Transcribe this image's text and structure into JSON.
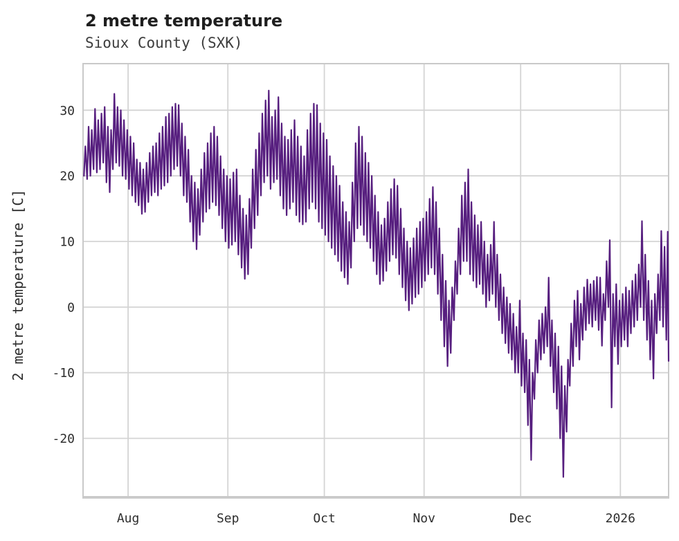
{
  "header": {
    "title": "2 metre temperature",
    "subtitle": "Sioux County (SXK)"
  },
  "chart_data": {
    "type": "line",
    "title": "2 metre temperature",
    "subtitle": "Sioux County (SXK)",
    "xlabel": "",
    "ylabel": "2 metre temperature [C]",
    "grid": true,
    "legend": "none",
    "line_color": "#571f7f",
    "grid_color": "#d4d4d4",
    "spine_color": "#c9c9c9",
    "x_tick_labels": [
      "Aug",
      "Sep",
      "Oct",
      "Nov",
      "Dec",
      "2026"
    ],
    "x_tick_day_offsets": [
      14,
      45,
      75,
      106,
      136,
      167
    ],
    "y_ticks": [
      30,
      20,
      10,
      0,
      -10,
      -20
    ],
    "ylim": [
      -28.9,
      37.1
    ],
    "xlim_days": [
      0,
      182
    ],
    "series_daily_envelope": {
      "note": "daily min/max envelope read from plot; day 0 = left edge (mid-July), consecutive days",
      "min": [
        20,
        19.5,
        20,
        21,
        20.5,
        21,
        22,
        19,
        17.5,
        21,
        22,
        21.5,
        20,
        19.5,
        18,
        17,
        16,
        15.5,
        14.2,
        14.5,
        16,
        17,
        17.5,
        17,
        18,
        18.5,
        19,
        20,
        21,
        21.5,
        20,
        17,
        16,
        13,
        10,
        8.8,
        11,
        13,
        14.5,
        15,
        16,
        15.5,
        14,
        12,
        10,
        9,
        9.5,
        10,
        8,
        6,
        4.3,
        5,
        9,
        12,
        14,
        17,
        19,
        20,
        18,
        19,
        19.5,
        17,
        15,
        14,
        15,
        16,
        14,
        13,
        12.6,
        13,
        15,
        16,
        15,
        13,
        12,
        11,
        10,
        9,
        8,
        7,
        5.5,
        4.5,
        3.5,
        6,
        10,
        12,
        12.5,
        11,
        10,
        9,
        7,
        5,
        3.5,
        4,
        5.5,
        7,
        8,
        7.5,
        5,
        3,
        1,
        -0.5,
        0.5,
        1.5,
        2,
        3,
        4,
        5,
        6,
        5,
        2,
        -2,
        -6,
        -9,
        -7,
        -2,
        2,
        5,
        7,
        7,
        5,
        4,
        3,
        3.5,
        2,
        0,
        1,
        2,
        0,
        -2,
        -4,
        -5.5,
        -7,
        -8,
        -10,
        -10,
        -12,
        -13,
        -18,
        -23.3,
        -14,
        -10,
        -8,
        -7,
        -6,
        -9,
        -13,
        -15.5,
        -20,
        -25.9,
        -19,
        -12,
        -9,
        -6,
        -8,
        -5,
        -3.5,
        -2.5,
        -3,
        -2,
        -3.5,
        -5.9,
        -2,
        0,
        -15.3,
        -6,
        -8.7,
        -6,
        -5,
        -6,
        -4,
        -3,
        -2,
        0,
        -2,
        -5,
        -8,
        -10.9,
        -4,
        -2,
        -3,
        -5
      ],
      "max": [
        24.5,
        27.5,
        27,
        30.2,
        28.5,
        29.5,
        30.5,
        27.5,
        27,
        32.5,
        30.5,
        30,
        28.5,
        27,
        26,
        25,
        22.5,
        22,
        21,
        22,
        23.5,
        24.5,
        25,
        26.5,
        27.5,
        29,
        29.5,
        30.5,
        31,
        30.8,
        28,
        26,
        24,
        20,
        19,
        18,
        21,
        23.5,
        25,
        26.5,
        27.5,
        26,
        23,
        21,
        20,
        19.5,
        20.5,
        21,
        17,
        15,
        14,
        16.5,
        21,
        24,
        26.5,
        29.5,
        31.5,
        33,
        29,
        30,
        32,
        28,
        26,
        25.5,
        27,
        28.5,
        26,
        24.5,
        23,
        27,
        29.5,
        31,
        30.8,
        28,
        26.5,
        25.5,
        23,
        21.5,
        20,
        18.5,
        16,
        14.5,
        13,
        19,
        25,
        27.5,
        26,
        23.5,
        22,
        20,
        17,
        14.5,
        12.5,
        13.5,
        16,
        18,
        19.5,
        18.5,
        15,
        12,
        10,
        9,
        10.5,
        12,
        13,
        13.5,
        14.5,
        16.5,
        18.3,
        16,
        12,
        8,
        4,
        1,
        3,
        7,
        12,
        17,
        19,
        21,
        16,
        14,
        12.5,
        13,
        10,
        8,
        9.5,
        13,
        8,
        5,
        3,
        1.5,
        0.5,
        -1,
        -3,
        1,
        -4,
        -5,
        -8,
        -10,
        -5,
        -2,
        -1,
        0,
        4.5,
        -2,
        -4,
        -6,
        -9,
        -12,
        -8,
        -2.5,
        1,
        2.5,
        0.5,
        3,
        4.2,
        3.5,
        4,
        4.6,
        4.5,
        2,
        7,
        10.2,
        2,
        3.5,
        1,
        2,
        3,
        2.5,
        4,
        5,
        6.5,
        13.1,
        8,
        4,
        1,
        2,
        5,
        11.6,
        9.2,
        11.5
      ]
    },
    "end_value": -8.2
  }
}
